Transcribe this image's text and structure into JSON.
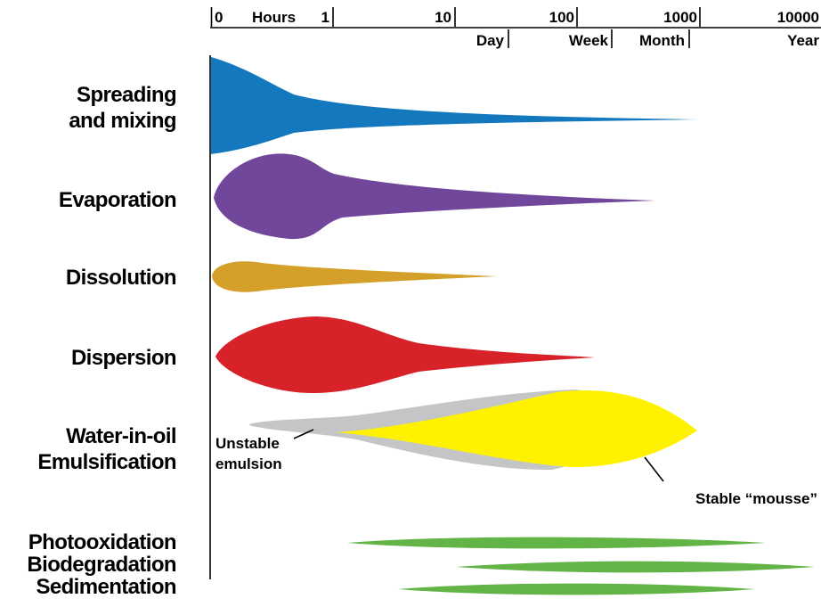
{
  "timescale": {
    "top_labels": [
      "0",
      "Hours",
      "1",
      "10",
      "100",
      "1000",
      "10000"
    ],
    "bottom_labels": [
      "Day",
      "Week",
      "Month",
      "Year"
    ]
  },
  "processes": [
    {
      "label_lines": [
        "Spreading",
        "and mixing"
      ],
      "color": "#1478BE"
    },
    {
      "label_lines": [
        "Evaporation"
      ],
      "color": "#71479B"
    },
    {
      "label_lines": [
        "Dissolution"
      ],
      "color": "#D5A02A"
    },
    {
      "label_lines": [
        "Dispersion"
      ],
      "color": "#D72229"
    },
    {
      "label_lines": [
        "Water-in-oil",
        "Emulsification"
      ],
      "color": "#FFF200"
    },
    {
      "label_lines": [
        "Photooxidation",
        "Biodegradation",
        "Sedimentation"
      ],
      "color": "#62B446"
    }
  ],
  "annotations": {
    "unstable_lines": [
      "Unstable",
      "emulsion"
    ],
    "unstable_color": "#C4C5C7",
    "stable": "Stable “mousse”"
  }
}
